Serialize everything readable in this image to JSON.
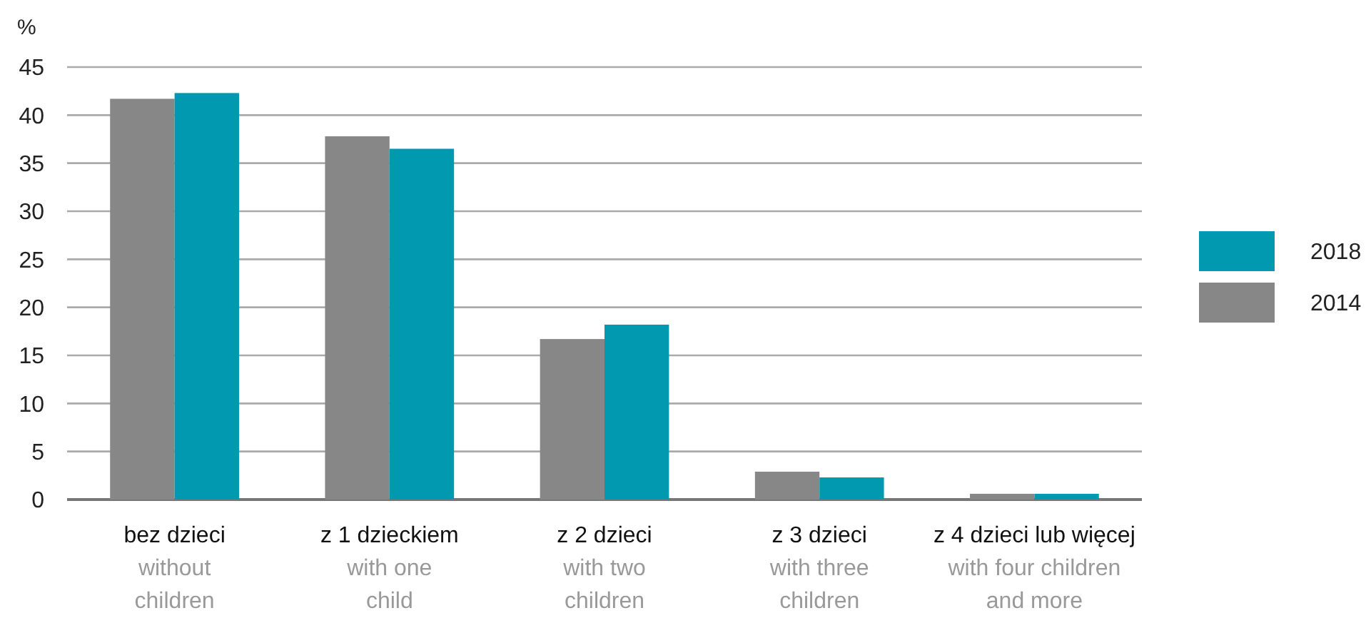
{
  "chart_data": {
    "type": "bar",
    "ylabel": "%",
    "categories": [
      "bez dzieci\nwithout\nchildren",
      "z 1 dzieckiem\nwith one\nchild",
      "z 2 dzieci\nwith two\nchildren",
      "z 3 dzieci\nwith three\nchildren",
      "z 4 dzieci lub więcej\nwith four children\nand more"
    ],
    "series": [
      {
        "name": "2014",
        "color": "#878787",
        "values": [
          41.7,
          37.8,
          16.7,
          2.9,
          0.6
        ]
      },
      {
        "name": "2018",
        "color": "#0099b0",
        "values": [
          42.3,
          36.5,
          18.2,
          2.3,
          0.6
        ]
      }
    ],
    "ylim": [
      0,
      45
    ],
    "yticks": [
      0,
      5,
      10,
      15,
      20,
      25,
      30,
      35,
      40,
      45
    ],
    "grid": "y",
    "legend": "right"
  }
}
